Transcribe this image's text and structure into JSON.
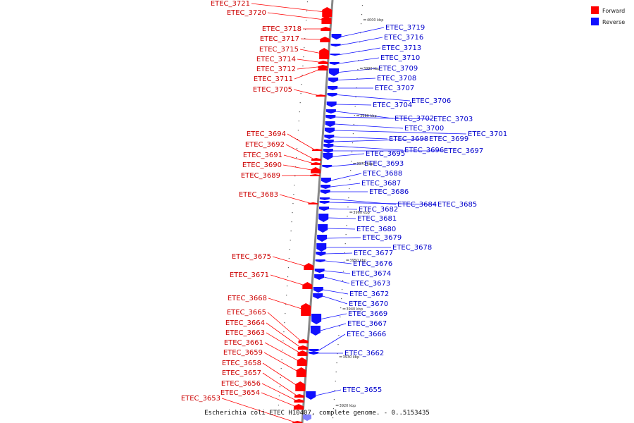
{
  "legend": {
    "forward_label": "Forward",
    "reverse_label": "Reverse",
    "forward_color": "#ff0000",
    "reverse_color": "#1010ff"
  },
  "caption": "Escherichia coli ETEC H10407, complete genome. - 0..5153435",
  "ticks": [
    "4000 kbp",
    "3990 kbp",
    "3980 kbp",
    "3970 kbp",
    "3960 kbp",
    "3950 kbp",
    "3940 kbp",
    "3930 kbp",
    "3920 kbp"
  ],
  "forward_genes": [
    "ETEC_3721",
    "ETEC_3720",
    "ETEC_3718",
    "ETEC_3717",
    "ETEC_3715",
    "ETEC_3714",
    "ETEC_3712",
    "ETEC_3711",
    "ETEC_3705",
    "ETEC_3694",
    "ETEC_3692",
    "ETEC_3691",
    "ETEC_3690",
    "ETEC_3689",
    "ETEC_3683",
    "ETEC_3675",
    "ETEC_3671",
    "ETEC_3668",
    "ETEC_3665",
    "ETEC_3664",
    "ETEC_3663",
    "ETEC_3661",
    "ETEC_3659",
    "ETEC_3658",
    "ETEC_3657",
    "ETEC_3656",
    "ETEC_3654",
    "ETEC_3653"
  ],
  "reverse_genes": [
    "ETEC_3719",
    "ETEC_3716",
    "ETEC_3713",
    "ETEC_3710",
    "ETEC_3709",
    "ETEC_3708",
    "ETEC_3707",
    "ETEC_3706",
    "ETEC_3704",
    "ETEC_3702",
    "ETEC_3703",
    "ETEC_3700",
    "ETEC_3701",
    "ETEC_3698",
    "ETEC_3699",
    "ETEC_3696",
    "ETEC_3697",
    "ETEC_3695",
    "ETEC_3693",
    "ETEC_3688",
    "ETEC_3687",
    "ETEC_3686",
    "ETEC_3684",
    "ETEC_3685",
    "ETEC_3682",
    "ETEC_3681",
    "ETEC_3680",
    "ETEC_3679",
    "ETEC_3678",
    "ETEC_3677",
    "ETEC_3676",
    "ETEC_3674",
    "ETEC_3673",
    "ETEC_3672",
    "ETEC_3670",
    "ETEC_3669",
    "ETEC_3667",
    "ETEC_3666",
    "ETEC_3662",
    "ETEC_3655"
  ]
}
